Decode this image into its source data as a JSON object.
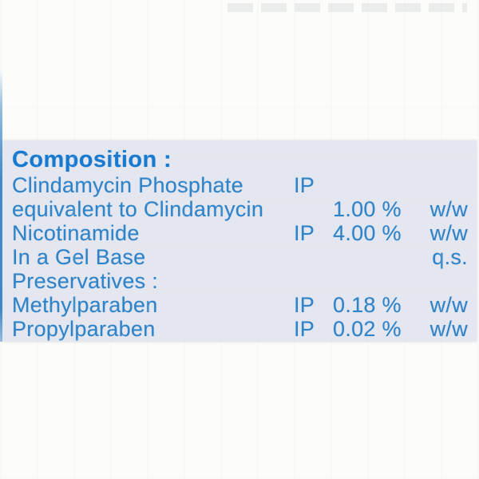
{
  "label": {
    "title": "Composition :",
    "subtitle": "Preservatives :",
    "rows": [
      {
        "name": "Clindamycin Phosphate",
        "pharmacopoeia": "IP",
        "amount": "",
        "unit": ""
      },
      {
        "name": "equivalent to Clindamycin",
        "pharmacopoeia": "",
        "amount": "1.00 %",
        "unit": "w/w"
      },
      {
        "name": "Nicotinamide",
        "pharmacopoeia": "IP",
        "amount": "4.00 %",
        "unit": "w/w"
      },
      {
        "name": "In a Gel Base",
        "pharmacopoeia": "",
        "amount": "",
        "unit": "q.s."
      },
      {
        "name": "Methylparaben",
        "pharmacopoeia": "IP",
        "amount": "0.18 %",
        "unit": "w/w"
      },
      {
        "name": "Propylparaben",
        "pharmacopoeia": "IP",
        "amount": "0.02 %",
        "unit": "w/w"
      }
    ],
    "colors": {
      "title_blue": "#1779cf",
      "body_blue": "#2f83c9",
      "panel_background": "#e4e7ef",
      "photo_background": "#fcfcfa",
      "edge_line_blue": "#4189cb"
    }
  }
}
